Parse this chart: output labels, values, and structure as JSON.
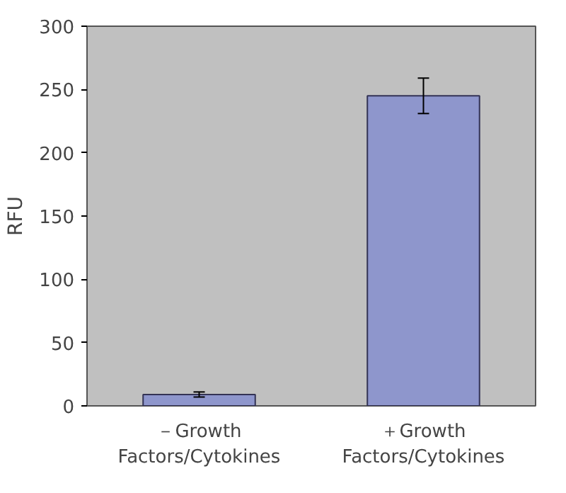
{
  "chart_data": {
    "type": "bar",
    "ylabel": "RFU",
    "categories": [
      "－Growth Factors/Cytokines",
      "＋Growth Factors/Cytokines"
    ],
    "values": [
      9,
      245
    ],
    "errors": [
      2,
      14
    ],
    "color": "#8e96cc",
    "ylim": [
      0,
      300
    ],
    "yticks": [
      0,
      50,
      100,
      150,
      200,
      250,
      300
    ],
    "grid": false
  }
}
